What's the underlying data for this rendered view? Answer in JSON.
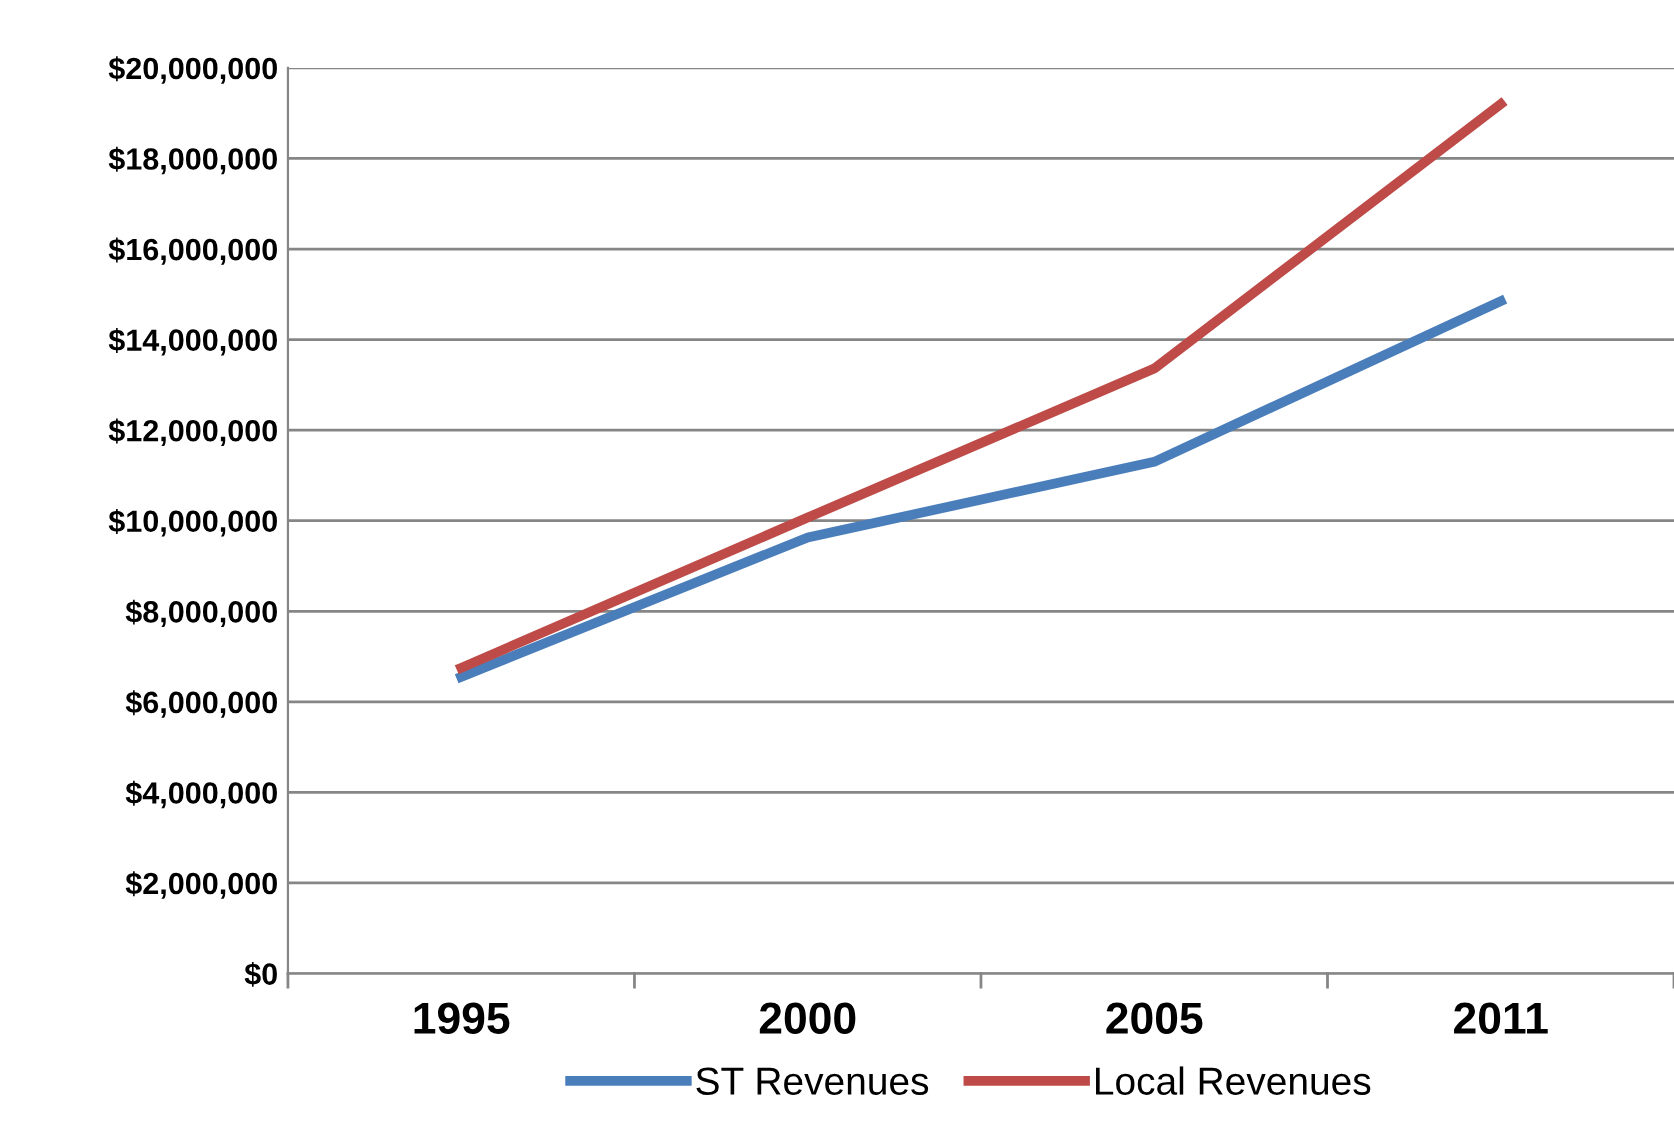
{
  "chart_data": {
    "type": "line",
    "categories": [
      "1995",
      "2000",
      "2005",
      "2011"
    ],
    "series": [
      {
        "name": "ST Revenues",
        "color": "#4a7ebb",
        "values": [
          6550000,
          9630000,
          11300000,
          14850000
        ]
      },
      {
        "name": "Local Revenues",
        "color": "#be4b48",
        "values": [
          6750000,
          10070000,
          13360000,
          19200000
        ]
      }
    ],
    "ylim": [
      0,
      20000000
    ],
    "yticks": [
      {
        "value": 0,
        "label": "$0"
      },
      {
        "value": 2000000,
        "label": "$2,000,000"
      },
      {
        "value": 4000000,
        "label": "$4,000,000"
      },
      {
        "value": 6000000,
        "label": "$6,000,000"
      },
      {
        "value": 8000000,
        "label": "$8,000,000"
      },
      {
        "value": 10000000,
        "label": "$10,000,000"
      },
      {
        "value": 12000000,
        "label": "$12,000,000"
      },
      {
        "value": 14000000,
        "label": "$14,000,000"
      },
      {
        "value": 16000000,
        "label": "$16,000,000"
      },
      {
        "value": 18000000,
        "label": "$18,000,000"
      },
      {
        "value": 20000000,
        "label": "$20,000,000"
      }
    ],
    "grid": "y",
    "legend": "bottom",
    "marker": "none",
    "line_style": "solid"
  }
}
